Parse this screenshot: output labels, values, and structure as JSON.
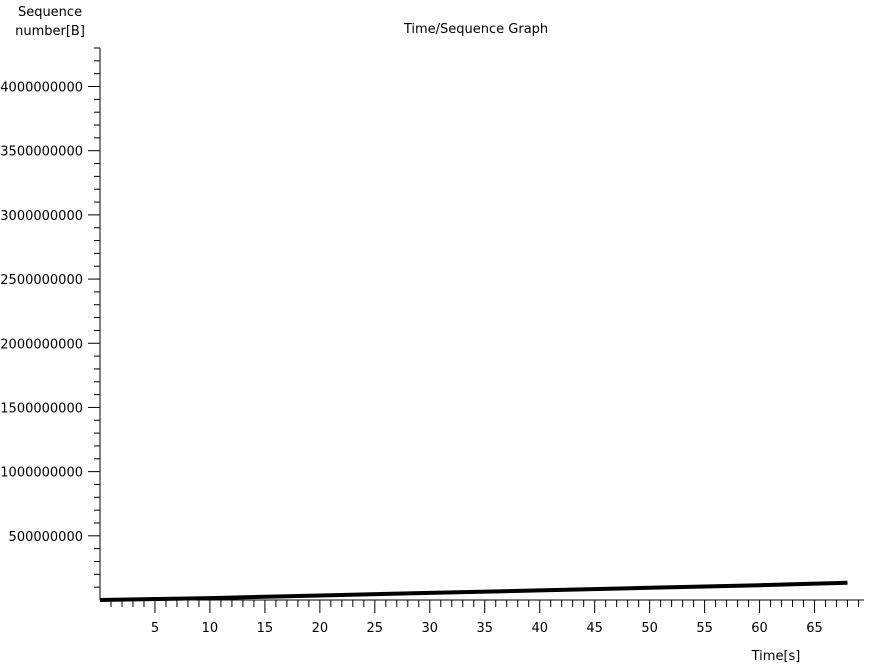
{
  "chart_data": {
    "type": "line",
    "title": "Time/Sequence Graph",
    "ylabel_line1": "Sequence",
    "ylabel_line2": "number[B]",
    "xlabel": "Time[s]",
    "xlim": [
      0,
      69.5
    ],
    "ylim": [
      0,
      4300000000
    ],
    "x_ticks": [
      5,
      10,
      15,
      20,
      25,
      30,
      35,
      40,
      45,
      50,
      55,
      60,
      65
    ],
    "x_tick_labels": [
      "5",
      "10",
      "15",
      "20",
      "25",
      "30",
      "35",
      "40",
      "45",
      "50",
      "55",
      "60",
      "65"
    ],
    "y_ticks": [
      500000000,
      1000000000,
      1500000000,
      2000000000,
      2500000000,
      3000000000,
      3500000000,
      4000000000
    ],
    "y_tick_labels": [
      "500000000",
      "1000000000",
      "1500000000",
      "2000000000",
      "2500000000",
      "3000000000",
      "3500000000",
      "4000000000"
    ],
    "grid": false,
    "series": [
      {
        "color": "#000000",
        "x": [
          0,
          10,
          20,
          30,
          40,
          50,
          60,
          68
        ],
        "y": [
          0,
          15000000,
          35000000,
          55000000,
          75000000,
          95000000,
          115000000,
          135000000
        ]
      }
    ]
  }
}
